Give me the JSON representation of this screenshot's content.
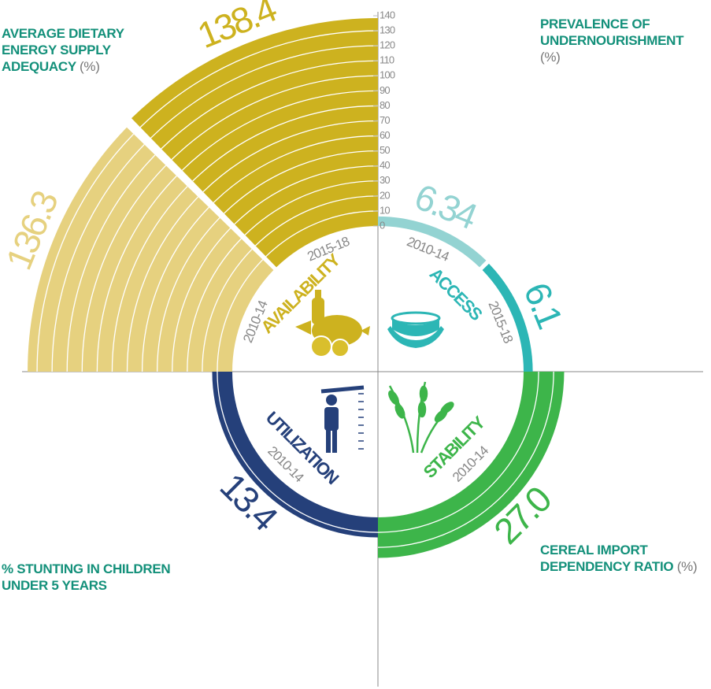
{
  "chart_data": {
    "type": "radial_bar",
    "ylim": [
      0,
      140
    ],
    "yticks": [
      0,
      10,
      20,
      30,
      40,
      50,
      60,
      70,
      80,
      90,
      100,
      110,
      120,
      130,
      140
    ],
    "panels": [
      {
        "name": "AVAILABILITY",
        "indicator": "AVERAGE DIETARY ENERGY SUPPLY ADEQUACY",
        "unit": "(%)",
        "periods": [
          "2010-14",
          "2015-18"
        ],
        "values": [
          136.3,
          138.4
        ],
        "colors": [
          "#e6d17f",
          "#cdb21f"
        ]
      },
      {
        "name": "ACCESS",
        "indicator": "PREVALENCE OF UNDERNOURISHMENT",
        "unit": "(%)",
        "periods": [
          "2010-14",
          "2015-18"
        ],
        "values": [
          6.34,
          6.1
        ],
        "colors": [
          "#93d3d2",
          "#2cb6b5"
        ]
      },
      {
        "name": "UTILIZATION",
        "indicator": "% STUNTING IN CHILDREN UNDER 5 YEARS",
        "periods": [
          "2010-14"
        ],
        "values": [
          13.4
        ],
        "colors": [
          "#25407a"
        ]
      },
      {
        "name": "STABILITY",
        "indicator": "CEREAL IMPORT DEPENDENCY RATIO",
        "unit": "(%)",
        "periods": [
          "2010-14"
        ],
        "values": [
          27
        ],
        "value_labels": [
          "27.0"
        ],
        "colors": [
          "#3db54a"
        ]
      }
    ]
  }
}
